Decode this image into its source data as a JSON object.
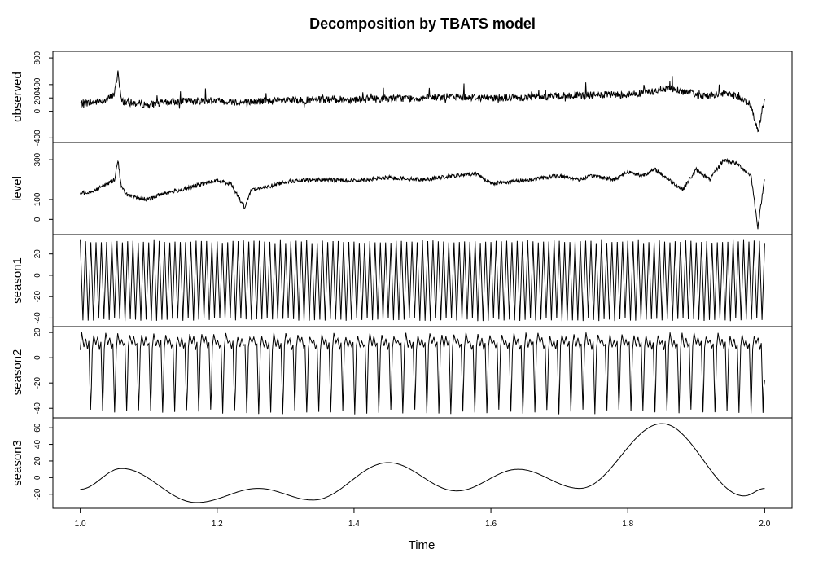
{
  "chart_data": {
    "type": "line",
    "title": "Decomposition by TBATS model",
    "xlabel": "Time",
    "xlim": [
      0.96,
      2.04
    ],
    "x_ticks": [
      "1.0",
      "1.2",
      "1.4",
      "1.6",
      "1.8",
      "2.0"
    ],
    "panels": [
      {
        "name": "observed",
        "ylim": [
          -420,
          850
        ],
        "y_ticks": [
          "-400",
          "0",
          "200",
          "400",
          "800"
        ],
        "series": [
          {
            "x": [
              1.0,
              1.02,
              1.04,
              1.05,
              1.055,
              1.06,
              1.08,
              1.1,
              1.14,
              1.2,
              1.24,
              1.26,
              1.3,
              1.36,
              1.4,
              1.45,
              1.5,
              1.55,
              1.6,
              1.65,
              1.7,
              1.75,
              1.8,
              1.84,
              1.86,
              1.88,
              1.9,
              1.92,
              1.94,
              1.96,
              1.98,
              1.99,
              2.0
            ],
            "y": [
              120,
              130,
              180,
              260,
              600,
              150,
              120,
              100,
              150,
              160,
              130,
              150,
              160,
              170,
              180,
              190,
              200,
              220,
              200,
              210,
              230,
              240,
              250,
              300,
              350,
              300,
              250,
              230,
              260,
              220,
              100,
              -300,
              200
            ]
          }
        ]
      },
      {
        "name": "level",
        "ylim": [
          -60,
          370
        ],
        "y_ticks": [
          "0",
          "100",
          "300"
        ],
        "series": [
          {
            "x": [
              1.0,
              1.02,
              1.04,
              1.05,
              1.055,
              1.06,
              1.07,
              1.08,
              1.1,
              1.12,
              1.15,
              1.18,
              1.2,
              1.22,
              1.24,
              1.25,
              1.27,
              1.3,
              1.35,
              1.4,
              1.45,
              1.5,
              1.55,
              1.58,
              1.6,
              1.63,
              1.66,
              1.7,
              1.73,
              1.75,
              1.78,
              1.8,
              1.82,
              1.84,
              1.86,
              1.88,
              1.9,
              1.92,
              1.94,
              1.96,
              1.98,
              1.99,
              2.0
            ],
            "y": [
              130,
              145,
              180,
              200,
              300,
              160,
              120,
              110,
              100,
              130,
              150,
              180,
              195,
              180,
              60,
              150,
              160,
              190,
              200,
              195,
              210,
              200,
              220,
              230,
              180,
              190,
              200,
              220,
              200,
              220,
              200,
              240,
              220,
              250,
              200,
              150,
              250,
              200,
              300,
              280,
              220,
              -40,
              210
            ]
          }
        ]
      },
      {
        "name": "season1",
        "ylim": [
          -45,
          35
        ],
        "y_ticks": [
          "-40",
          "-20",
          "0",
          "20"
        ],
        "series": [
          {
            "x": [
              1.0,
              2.0
            ],
            "y": [
              -43,
              33
            ]
          }
        ]
      },
      {
        "name": "season2",
        "ylim": [
          -45,
          22
        ],
        "y_ticks": [
          "-40",
          "-20",
          "0",
          "20"
        ],
        "series": [
          {
            "x": [
              1.0,
              2.0
            ],
            "y": [
              -43,
              18
            ]
          }
        ]
      },
      {
        "name": "season3",
        "ylim": [
          -33,
          68
        ],
        "y_ticks": [
          "-20",
          "0",
          "20",
          "40",
          "60"
        ],
        "series": [
          {
            "x": [
              1.0,
              1.06,
              1.17,
              1.26,
              1.34,
              1.45,
              1.55,
              1.64,
              1.73,
              1.85,
              1.97,
              2.0
            ],
            "y": [
              -14,
              11,
              -30,
              -13,
              -27,
              18,
              -16,
              10,
              -13,
              65,
              -22,
              -13
            ]
          }
        ]
      }
    ]
  }
}
